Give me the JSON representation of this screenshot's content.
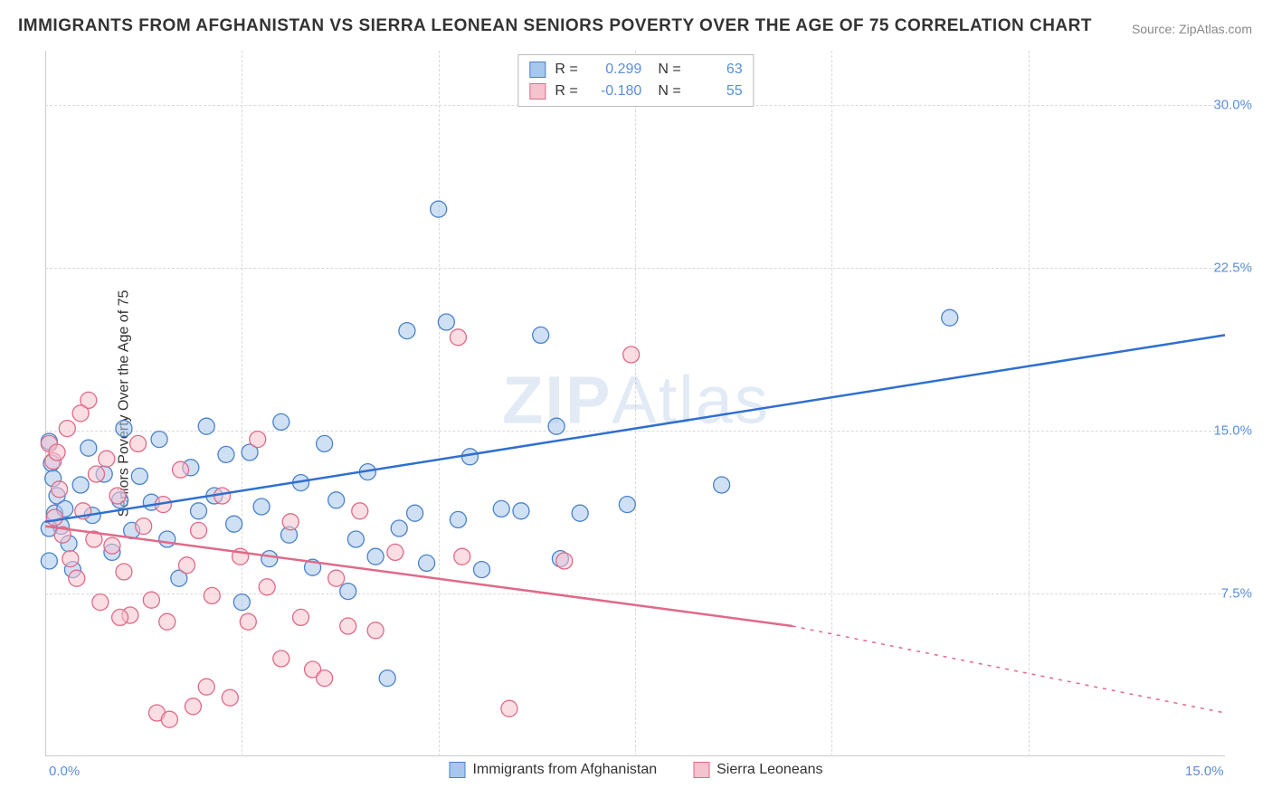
{
  "title": "IMMIGRANTS FROM AFGHANISTAN VS SIERRA LEONEAN SENIORS POVERTY OVER THE AGE OF 75 CORRELATION CHART",
  "source": "Source: ZipAtlas.com",
  "watermark": "ZIPAtlas",
  "chart": {
    "type": "scatter",
    "ylabel": "Seniors Poverty Over the Age of 75",
    "xlim": [
      0,
      15
    ],
    "ylim": [
      0,
      32.5
    ],
    "x_tick_values": [
      0,
      15
    ],
    "x_tick_labels": [
      "0.0%",
      "15.0%"
    ],
    "y_tick_values": [
      7.5,
      15.0,
      22.5,
      30.0
    ],
    "y_tick_labels": [
      "7.5%",
      "15.0%",
      "22.5%",
      "30.0%"
    ],
    "gridlines_v_x": [
      2.5,
      5.0,
      7.5,
      10.0,
      12.5
    ],
    "background_color": "#ffffff",
    "grid_color": "#d9d9d9",
    "axis_color": "#cccccc",
    "tick_label_color": "#5a8fd6",
    "marker_radius": 9,
    "marker_opacity": 0.55,
    "line_width": 2.5,
    "series": [
      {
        "name": "Immigrants from Afghanistan",
        "marker_fill": "#a7c7ec",
        "marker_stroke": "#4a82c9",
        "line_color": "#2f6fcf",
        "r_label": "R =",
        "n_label": "N =",
        "r_value": "0.299",
        "n_value": "63",
        "trend_start": {
          "x": 0.0,
          "y": 10.8
        },
        "trend_end_solid": {
          "x": 15.0,
          "y": 19.4
        },
        "points": [
          {
            "x": 0.05,
            "y": 14.5
          },
          {
            "x": 0.08,
            "y": 13.5
          },
          {
            "x": 0.1,
            "y": 12.8
          },
          {
            "x": 0.12,
            "y": 11.2
          },
          {
            "x": 0.15,
            "y": 12.0
          },
          {
            "x": 0.2,
            "y": 10.6
          },
          {
            "x": 0.25,
            "y": 11.4
          },
          {
            "x": 0.3,
            "y": 9.8
          },
          {
            "x": 0.35,
            "y": 8.6
          },
          {
            "x": 0.45,
            "y": 12.5
          },
          {
            "x": 0.55,
            "y": 14.2
          },
          {
            "x": 0.6,
            "y": 11.1
          },
          {
            "x": 0.75,
            "y": 13.0
          },
          {
            "x": 0.85,
            "y": 9.4
          },
          {
            "x": 0.95,
            "y": 11.8
          },
          {
            "x": 1.0,
            "y": 15.1
          },
          {
            "x": 1.1,
            "y": 10.4
          },
          {
            "x": 1.2,
            "y": 12.9
          },
          {
            "x": 1.35,
            "y": 11.7
          },
          {
            "x": 1.45,
            "y": 14.6
          },
          {
            "x": 1.55,
            "y": 10.0
          },
          {
            "x": 1.7,
            "y": 8.2
          },
          {
            "x": 1.85,
            "y": 13.3
          },
          {
            "x": 1.95,
            "y": 11.3
          },
          {
            "x": 2.05,
            "y": 15.2
          },
          {
            "x": 2.15,
            "y": 12.0
          },
          {
            "x": 2.3,
            "y": 13.9
          },
          {
            "x": 2.4,
            "y": 10.7
          },
          {
            "x": 2.5,
            "y": 7.1
          },
          {
            "x": 2.6,
            "y": 14.0
          },
          {
            "x": 2.75,
            "y": 11.5
          },
          {
            "x": 2.85,
            "y": 9.1
          },
          {
            "x": 3.0,
            "y": 15.4
          },
          {
            "x": 3.1,
            "y": 10.2
          },
          {
            "x": 3.25,
            "y": 12.6
          },
          {
            "x": 3.4,
            "y": 8.7
          },
          {
            "x": 3.55,
            "y": 14.4
          },
          {
            "x": 3.7,
            "y": 11.8
          },
          {
            "x": 3.85,
            "y": 7.6
          },
          {
            "x": 3.95,
            "y": 10.0
          },
          {
            "x": 4.1,
            "y": 13.1
          },
          {
            "x": 4.2,
            "y": 9.2
          },
          {
            "x": 4.35,
            "y": 3.6
          },
          {
            "x": 4.5,
            "y": 10.5
          },
          {
            "x": 4.6,
            "y": 19.6
          },
          {
            "x": 4.7,
            "y": 11.2
          },
          {
            "x": 4.85,
            "y": 8.9
          },
          {
            "x": 5.0,
            "y": 25.2
          },
          {
            "x": 5.1,
            "y": 20.0
          },
          {
            "x": 5.25,
            "y": 10.9
          },
          {
            "x": 5.4,
            "y": 13.8
          },
          {
            "x": 5.55,
            "y": 8.6
          },
          {
            "x": 5.8,
            "y": 11.4
          },
          {
            "x": 6.05,
            "y": 11.3
          },
          {
            "x": 6.3,
            "y": 19.4
          },
          {
            "x": 6.5,
            "y": 15.2
          },
          {
            "x": 6.55,
            "y": 9.1
          },
          {
            "x": 6.8,
            "y": 11.2
          },
          {
            "x": 7.4,
            "y": 11.6
          },
          {
            "x": 8.6,
            "y": 12.5
          },
          {
            "x": 11.5,
            "y": 20.2
          },
          {
            "x": 0.05,
            "y": 10.5
          },
          {
            "x": 0.05,
            "y": 9.0
          }
        ]
      },
      {
        "name": "Sierra Leoneans",
        "marker_fill": "#f5c3cd",
        "marker_stroke": "#e06a88",
        "line_color": "#e06a88",
        "r_label": "R =",
        "n_label": "N =",
        "r_value": "-0.180",
        "n_value": "55",
        "trend_start": {
          "x": 0.0,
          "y": 10.6
        },
        "trend_end_solid": {
          "x": 9.5,
          "y": 6.0
        },
        "trend_end_dashed": {
          "x": 15.0,
          "y": 2.0
        },
        "points": [
          {
            "x": 0.05,
            "y": 14.4
          },
          {
            "x": 0.1,
            "y": 13.6
          },
          {
            "x": 0.12,
            "y": 11.0
          },
          {
            "x": 0.18,
            "y": 12.3
          },
          {
            "x": 0.22,
            "y": 10.2
          },
          {
            "x": 0.28,
            "y": 15.1
          },
          {
            "x": 0.32,
            "y": 9.1
          },
          {
            "x": 0.4,
            "y": 8.2
          },
          {
            "x": 0.48,
            "y": 11.3
          },
          {
            "x": 0.55,
            "y": 16.4
          },
          {
            "x": 0.62,
            "y": 10.0
          },
          {
            "x": 0.7,
            "y": 7.1
          },
          {
            "x": 0.78,
            "y": 13.7
          },
          {
            "x": 0.85,
            "y": 9.7
          },
          {
            "x": 0.92,
            "y": 12.0
          },
          {
            "x": 1.0,
            "y": 8.5
          },
          {
            "x": 1.08,
            "y": 6.5
          },
          {
            "x": 1.18,
            "y": 14.4
          },
          {
            "x": 1.25,
            "y": 10.6
          },
          {
            "x": 1.35,
            "y": 7.2
          },
          {
            "x": 1.42,
            "y": 2.0
          },
          {
            "x": 1.5,
            "y": 11.6
          },
          {
            "x": 1.58,
            "y": 1.7
          },
          {
            "x": 1.55,
            "y": 6.2
          },
          {
            "x": 1.72,
            "y": 13.2
          },
          {
            "x": 1.8,
            "y": 8.8
          },
          {
            "x": 1.88,
            "y": 2.3
          },
          {
            "x": 1.95,
            "y": 10.4
          },
          {
            "x": 2.05,
            "y": 3.2
          },
          {
            "x": 2.12,
            "y": 7.4
          },
          {
            "x": 2.25,
            "y": 12.0
          },
          {
            "x": 2.35,
            "y": 2.7
          },
          {
            "x": 2.48,
            "y": 9.2
          },
          {
            "x": 2.58,
            "y": 6.2
          },
          {
            "x": 2.7,
            "y": 14.6
          },
          {
            "x": 2.82,
            "y": 7.8
          },
          {
            "x": 3.0,
            "y": 4.5
          },
          {
            "x": 3.12,
            "y": 10.8
          },
          {
            "x": 3.25,
            "y": 6.4
          },
          {
            "x": 3.4,
            "y": 4.0
          },
          {
            "x": 3.55,
            "y": 3.6
          },
          {
            "x": 3.7,
            "y": 8.2
          },
          {
            "x": 3.85,
            "y": 6.0
          },
          {
            "x": 4.0,
            "y": 11.3
          },
          {
            "x": 4.2,
            "y": 5.8
          },
          {
            "x": 4.45,
            "y": 9.4
          },
          {
            "x": 5.25,
            "y": 19.3
          },
          {
            "x": 5.3,
            "y": 9.2
          },
          {
            "x": 5.9,
            "y": 2.2
          },
          {
            "x": 6.6,
            "y": 9.0
          },
          {
            "x": 7.45,
            "y": 18.5
          },
          {
            "x": 0.15,
            "y": 14.0
          },
          {
            "x": 0.45,
            "y": 15.8
          },
          {
            "x": 0.65,
            "y": 13.0
          },
          {
            "x": 0.95,
            "y": 6.4
          }
        ]
      }
    ]
  }
}
